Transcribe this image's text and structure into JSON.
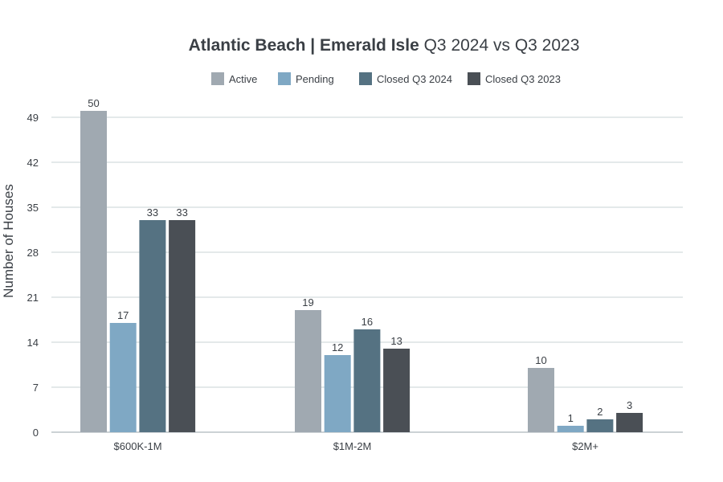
{
  "chart_data": {
    "type": "bar",
    "title_bold": "Atlantic Beach | Emerald Isle",
    "title_regular": "Q3 2024 vs Q3 2023",
    "xlabel": "",
    "ylabel": "Number of Houses",
    "ylim": [
      0,
      50
    ],
    "yticks": [
      0,
      7,
      14,
      21,
      28,
      35,
      42,
      49
    ],
    "grid": true,
    "legend_position": "top-center",
    "categories": [
      "$600K-1M",
      "$1M-2M",
      "$2M+"
    ],
    "series": [
      {
        "name": "Active",
        "color": "#a0a9b1",
        "values": [
          50,
          19,
          10
        ]
      },
      {
        "name": "Pending",
        "color": "#7fa8c4",
        "values": [
          17,
          12,
          1
        ]
      },
      {
        "name": "Closed Q3 2024",
        "color": "#557282",
        "values": [
          33,
          16,
          2
        ]
      },
      {
        "name": "Closed Q3 2023",
        "color": "#4a4f55",
        "values": [
          33,
          13,
          3
        ]
      }
    ]
  }
}
